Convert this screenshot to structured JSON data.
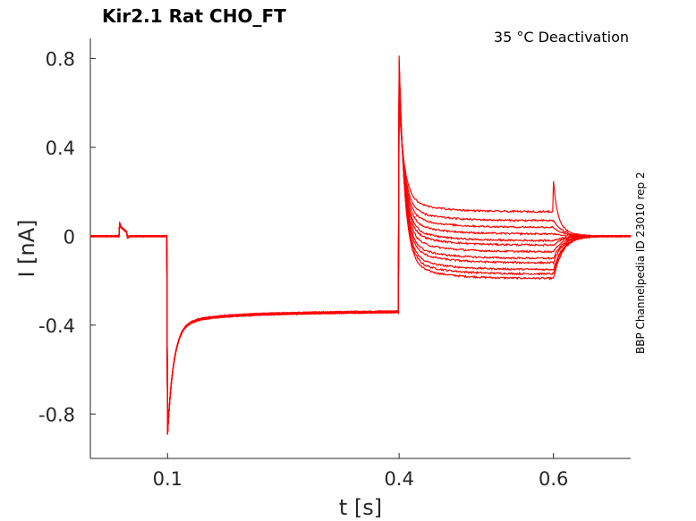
{
  "chart_data": {
    "type": "line",
    "title": "Kir2.1  Rat  CHO_FT",
    "subtitle": "35 °C  Deactivation",
    "side_label": "BBP Channelpedia ID 23010 rep 2",
    "xlabel": "t [s]",
    "ylabel": "I [nA]",
    "xlim": [
      0.0,
      0.7
    ],
    "ylim": [
      -1.0,
      0.89
    ],
    "x_ticks": [
      {
        "value": 0.1,
        "label": "0.1"
      },
      {
        "value": 0.4,
        "label": "0.4"
      },
      {
        "value": 0.6,
        "label": "0.6"
      }
    ],
    "y_ticks": [
      {
        "value": 0.8,
        "label": "0.8"
      },
      {
        "value": 0.4,
        "label": "0.4"
      },
      {
        "value": 0.0,
        "label": "0"
      },
      {
        "value": -0.4,
        "label": "-0.4"
      },
      {
        "value": -0.8,
        "label": "-0.8"
      }
    ],
    "grid": false,
    "line_color": "#ff0000",
    "series_count": 12,
    "steady_state_test_pulse": [
      -0.19,
      -0.17,
      -0.15,
      -0.12,
      -0.1,
      -0.07,
      -0.04,
      -0.02,
      0.01,
      0.04,
      0.07,
      0.11
    ],
    "key_points": {
      "artifact_peak": [
        0.042,
        0.06
      ],
      "hyperpolarization_step": 0.1,
      "hyperpolarization_peak": -0.84,
      "hyperpolarization_steady": -0.35,
      "test_step": 0.4,
      "test_peak": 0.73,
      "tail_step": 0.6,
      "tail_peak": 0.25
    }
  }
}
